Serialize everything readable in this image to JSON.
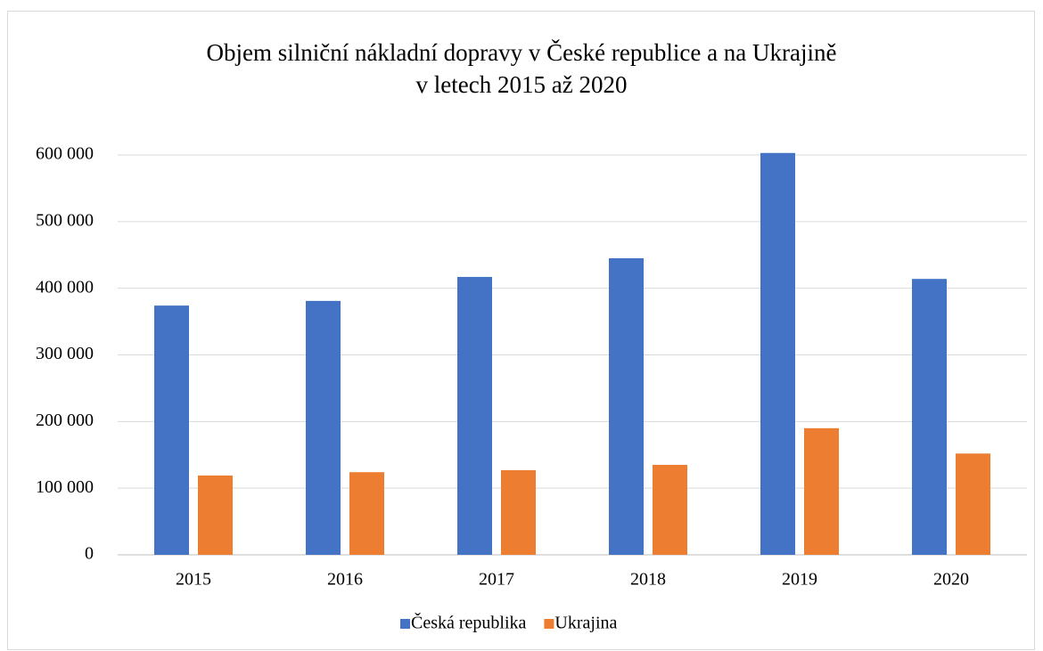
{
  "chart_data": {
    "type": "bar",
    "title": [
      "Objem silniční nákladní dopravy v České republice a na Ukrajině",
      "v letech 2015 až 2020"
    ],
    "categories": [
      "2015",
      "2016",
      "2017",
      "2018",
      "2019",
      "2020"
    ],
    "series": [
      {
        "name": "Česká republika",
        "color": "#4472c4",
        "values": [
          374000,
          381000,
          417000,
          445000,
          603000,
          414000
        ]
      },
      {
        "name": "Ukrajina",
        "color": "#ed7d31",
        "values": [
          119000,
          124000,
          127000,
          135000,
          190000,
          152000
        ]
      }
    ],
    "ylim": [
      0,
      600000
    ],
    "yticks": [
      0,
      {
        "value": 100000,
        "label": "100 000"
      },
      {
        "value": 200000,
        "label": "200 000"
      },
      {
        "value": 300000,
        "label": "300 000"
      },
      {
        "value": 400000,
        "label": "400 000"
      },
      {
        "value": 500000,
        "label": "500 000"
      },
      {
        "value": 600000,
        "label": "600 000"
      }
    ],
    "grid": true,
    "legend": "bottom"
  }
}
